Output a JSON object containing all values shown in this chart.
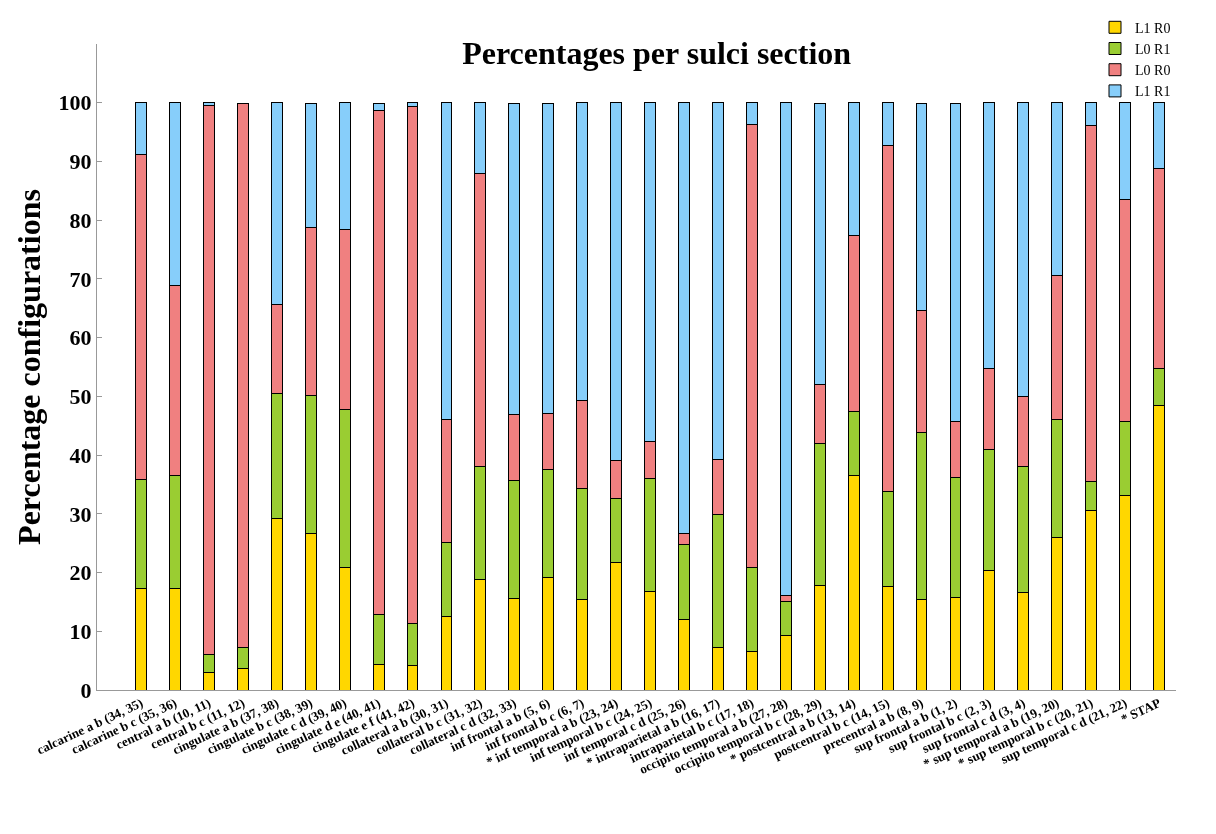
{
  "chart_data": {
    "type": "bar",
    "stacked": true,
    "title": "Percentages per sulci section",
    "ylabel": "Percentage configurations",
    "categories": [
      "calcarine a b (34, 35)",
      "calcarine b c (35, 36)",
      "central a b (10, 11)",
      "central b c (11, 12)",
      "cingulate a b (37, 38)",
      "cingulate b c (38, 39)",
      "cingulate c d (39, 40)",
      "cingulate d e (40, 41)",
      "cingulate e f (41, 42)",
      "collateral a b (30, 31)",
      "collateral b c (31, 32)",
      "collateral c d (32, 33)",
      "inf frontal a b (5, 6)",
      "inf frontal b c (6, 7)",
      "* inf temporal a b (23, 24)",
      "inf temporal b c (24, 25)",
      "inf temporal c d (25, 26)",
      "* intraparietal a b (16, 17)",
      "intraparietal b c (17, 18)",
      "occipito temporal a b (27, 28)",
      "occipito temporal b c (28, 29)",
      "* postcentral a b (13, 14)",
      "postcentral b c (14, 15)",
      "precentral a b (8, 9)",
      "sup frontal a b (1, 2)",
      "sup frontal b c (2, 3)",
      "sup frontal c d (3, 4)",
      "* sup temporal a b (19, 20)",
      "* sup temporal b c (20, 21)",
      "sup temporal c d (21, 22)",
      "* STAP"
    ],
    "series": [
      {
        "name": "L1 R0",
        "color": "#ffd700",
        "values": [
          17.2,
          17.2,
          3.0,
          3.6,
          29.2,
          26.7,
          20.9,
          4.4,
          4.2,
          12.6,
          18.8,
          15.6,
          19.1,
          15.4,
          21.7,
          16.8,
          12.0,
          7.2,
          6.6,
          9.2,
          17.8,
          36.6,
          17.6,
          15.4,
          15.8,
          20.4,
          16.6,
          25.9,
          30.6,
          33.1,
          48.5
        ]
      },
      {
        "name": "L0 R1",
        "color": "#9acd32",
        "values": [
          18.7,
          19.4,
          3.1,
          3.6,
          21.3,
          23.4,
          26.9,
          8.5,
          7.1,
          12.5,
          19.2,
          20.1,
          18.4,
          18.9,
          10.9,
          19.2,
          12.7,
          22.7,
          14.3,
          5.8,
          24.2,
          10.8,
          16.2,
          28.5,
          20.4,
          20.6,
          21.4,
          20.2,
          4.9,
          12.7,
          6.2
        ]
      },
      {
        "name": "L0 R0",
        "color": "#f08080",
        "values": [
          55.2,
          32.3,
          93.4,
          92.7,
          15.1,
          28.6,
          30.6,
          85.7,
          88.0,
          21.0,
          49.9,
          11.2,
          9.6,
          15.0,
          6.4,
          6.4,
          1.9,
          9.4,
          75.4,
          1.1,
          10.0,
          30.0,
          59.0,
          20.8,
          9.5,
          13.8,
          12.0,
          24.4,
          60.6,
          37.7,
          34.1
        ]
      },
      {
        "name": "L1 R1",
        "color": "#87cefa",
        "values": [
          8.9,
          31.1,
          0.5,
          null,
          34.4,
          21.1,
          21.6,
          1.2,
          0.7,
          53.9,
          12.1,
          52.9,
          52.7,
          50.7,
          61.0,
          57.6,
          73.4,
          60.7,
          3.7,
          83.9,
          47.8,
          22.6,
          7.2,
          35.1,
          54.1,
          45.2,
          50.0,
          29.5,
          3.9,
          16.5,
          11.2
        ]
      }
    ],
    "ylim": [
      0,
      110
    ],
    "yticks": [
      0,
      10,
      20,
      30,
      40,
      50,
      60,
      70,
      80,
      90,
      100
    ],
    "legend": "top right"
  }
}
